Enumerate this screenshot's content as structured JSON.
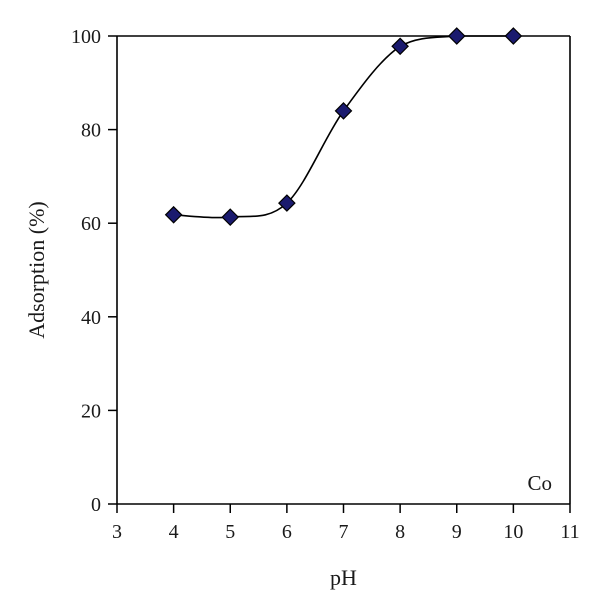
{
  "chart_data": {
    "type": "scatter",
    "title": "",
    "xlabel": "pH",
    "ylabel": "Adsorption (%)",
    "xlim": [
      3,
      11
    ],
    "ylim": [
      0,
      100
    ],
    "xticks": [
      3,
      4,
      5,
      6,
      7,
      8,
      9,
      10,
      11
    ],
    "yticks": [
      0,
      20,
      40,
      60,
      80,
      100
    ],
    "grid": false,
    "annotation": "Co",
    "series": [
      {
        "x": [
          4,
          5,
          6,
          7,
          8,
          9,
          10
        ],
        "y": [
          61.8,
          61.3,
          64.3,
          84.0,
          97.8,
          100,
          100
        ],
        "marker": "diamond",
        "marker_color": "#1a1a6e",
        "line": "smooth",
        "line_color": "#000000"
      }
    ]
  }
}
